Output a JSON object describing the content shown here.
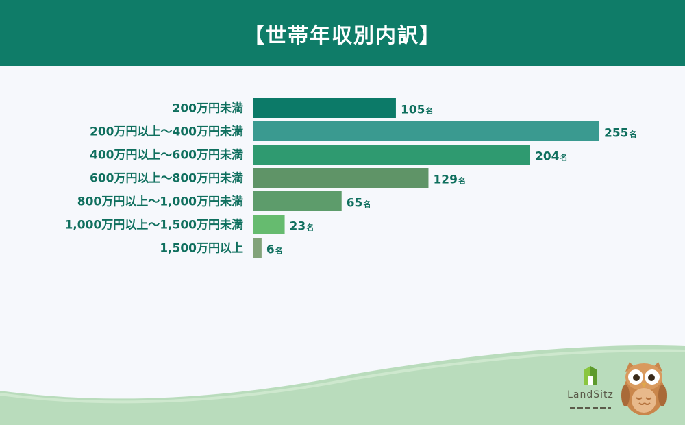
{
  "header": {
    "title": "【世帯年収別内訳】"
  },
  "chart_data": {
    "type": "bar",
    "orientation": "horizontal",
    "title": "【世帯年収別内訳】",
    "categories": [
      "200万円未満",
      "200万円以上〜400万円未満",
      "400万円以上〜600万円未満",
      "600万円以上〜800万円未満",
      "800万円以上〜1,000万円未満",
      "1,000万円以上〜1,500万円未満",
      "1,500万円以上"
    ],
    "values": [
      105,
      255,
      204,
      129,
      65,
      23,
      6
    ],
    "unit": "名",
    "colors": [
      "#0c7a68",
      "#3a9a90",
      "#2f9a70",
      "#5f9467",
      "#5d9c6b",
      "#66bb6f",
      "#82a37a"
    ],
    "grid": false,
    "legend": "none"
  },
  "brand": {
    "logo_text": "LandSitz"
  },
  "colors": {
    "header": "#0f7c68",
    "wave": "#b9dcbc",
    "label": "#0f6f5e"
  }
}
